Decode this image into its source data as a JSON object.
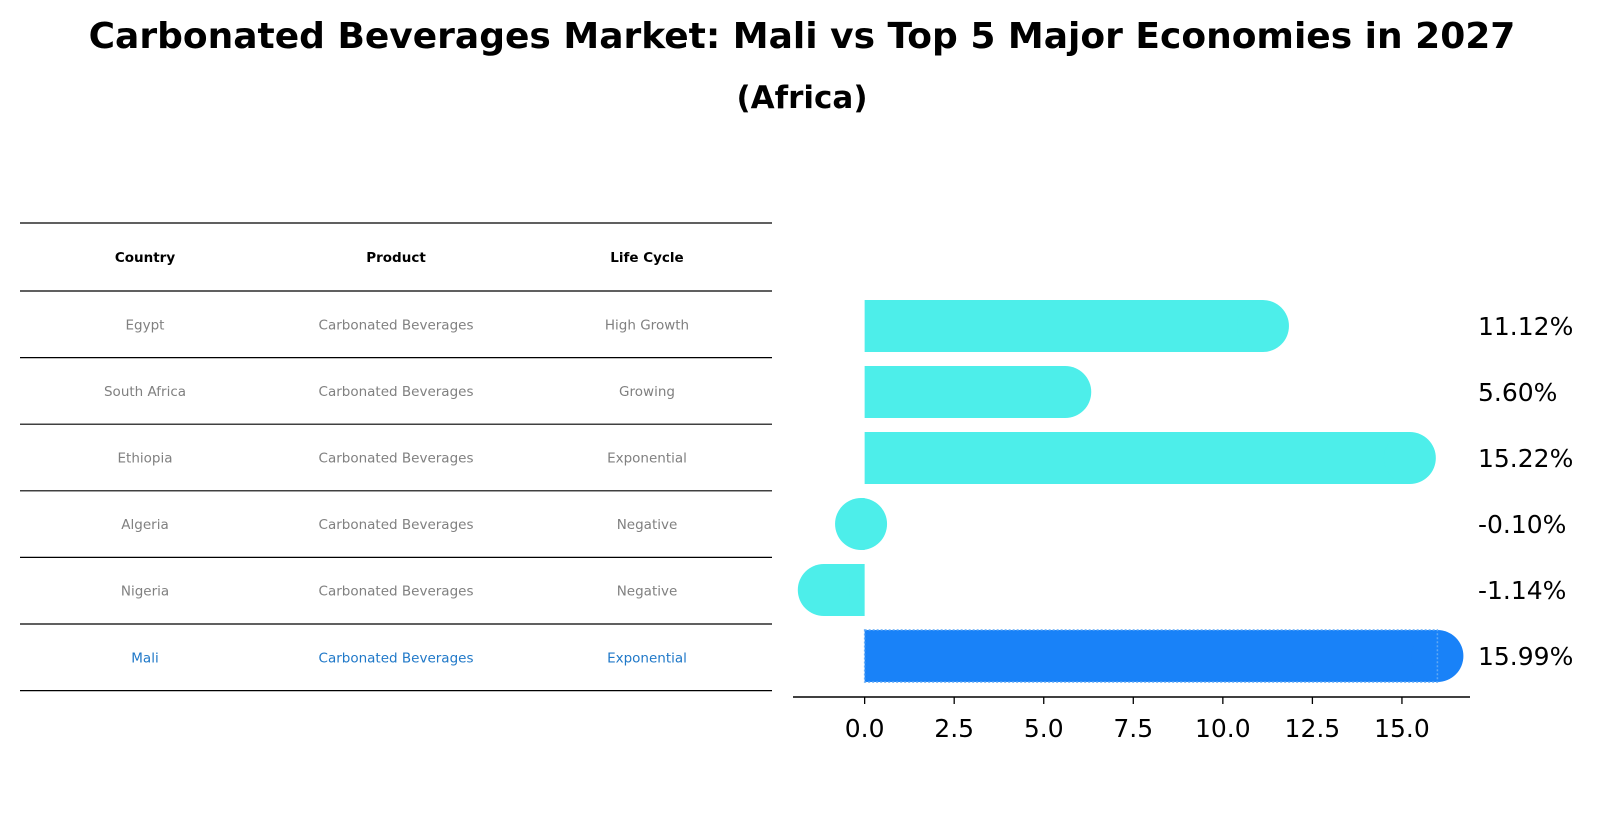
{
  "header": {
    "title": "Carbonated Beverages Market: Mali vs Top 5 Major Economies in 2027",
    "subtitle": "(Africa)"
  },
  "table": {
    "columns": [
      "Country",
      "Product",
      "Life Cycle"
    ],
    "rows": [
      {
        "country": "Egypt",
        "product": "Carbonated Beverages",
        "life_cycle": "High Growth",
        "highlight": false
      },
      {
        "country": "South Africa",
        "product": "Carbonated Beverages",
        "life_cycle": "Growing",
        "highlight": false
      },
      {
        "country": "Ethiopia",
        "product": "Carbonated Beverages",
        "life_cycle": "Exponential",
        "highlight": false
      },
      {
        "country": "Algeria",
        "product": "Carbonated Beverages",
        "life_cycle": "Negative",
        "highlight": false
      },
      {
        "country": "Nigeria",
        "product": "Carbonated Beverages",
        "life_cycle": "Negative",
        "highlight": false
      },
      {
        "country": "Mali",
        "product": "Carbonated Beverages",
        "life_cycle": "Exponential",
        "highlight": true
      }
    ]
  },
  "colors": {
    "bar": "#4DEEEA",
    "highlight_bar": "#1982F8",
    "highlight_text": "#1F78C8",
    "text_gray": "#808080"
  },
  "chart_data": {
    "type": "bar",
    "orientation": "horizontal",
    "categories": [
      "Egypt",
      "South Africa",
      "Ethiopia",
      "Algeria",
      "Nigeria",
      "Mali"
    ],
    "values": [
      11.12,
      5.6,
      15.22,
      -0.1,
      -1.14,
      15.99
    ],
    "value_labels": [
      "11.12%",
      "5.60%",
      "15.22%",
      "-0.10%",
      "-1.14%",
      "15.99%"
    ],
    "highlight": "Mali",
    "xlim": [
      -2.0,
      16.9
    ],
    "xticks": [
      0.0,
      2.5,
      5.0,
      7.5,
      10.0,
      12.5,
      15.0
    ],
    "xtick_labels": [
      "0.0",
      "2.5",
      "5.0",
      "7.5",
      "10.0",
      "12.5",
      "15.0"
    ],
    "xlabel": "",
    "ylabel": ""
  }
}
